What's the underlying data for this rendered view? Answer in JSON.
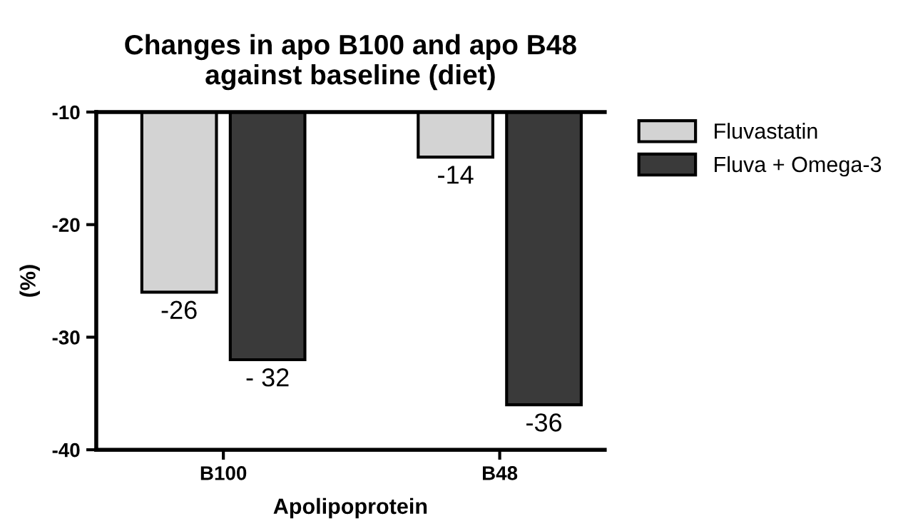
{
  "chart_data": {
    "type": "bar",
    "title": "Changes in apo B100 and apo B48\nagainst baseline (diet)",
    "xlabel": "Apolipoprotein",
    "ylabel": "(%)",
    "categories": [
      "B100",
      "B48"
    ],
    "series": [
      {
        "name": "Fluvastatin",
        "color": "#d3d3d3",
        "values": [
          -26,
          -14
        ],
        "value_labels": [
          "-26",
          "-14"
        ]
      },
      {
        "name": "Fluva + Omega-3",
        "color": "#3a3a3a",
        "values": [
          -32,
          -36
        ],
        "value_labels": [
          "- 32",
          "-36"
        ]
      }
    ],
    "ylim": [
      -40,
      -10
    ],
    "yticks": [
      -40,
      -30,
      -20,
      -10
    ],
    "grid": false,
    "legend": "top right"
  }
}
